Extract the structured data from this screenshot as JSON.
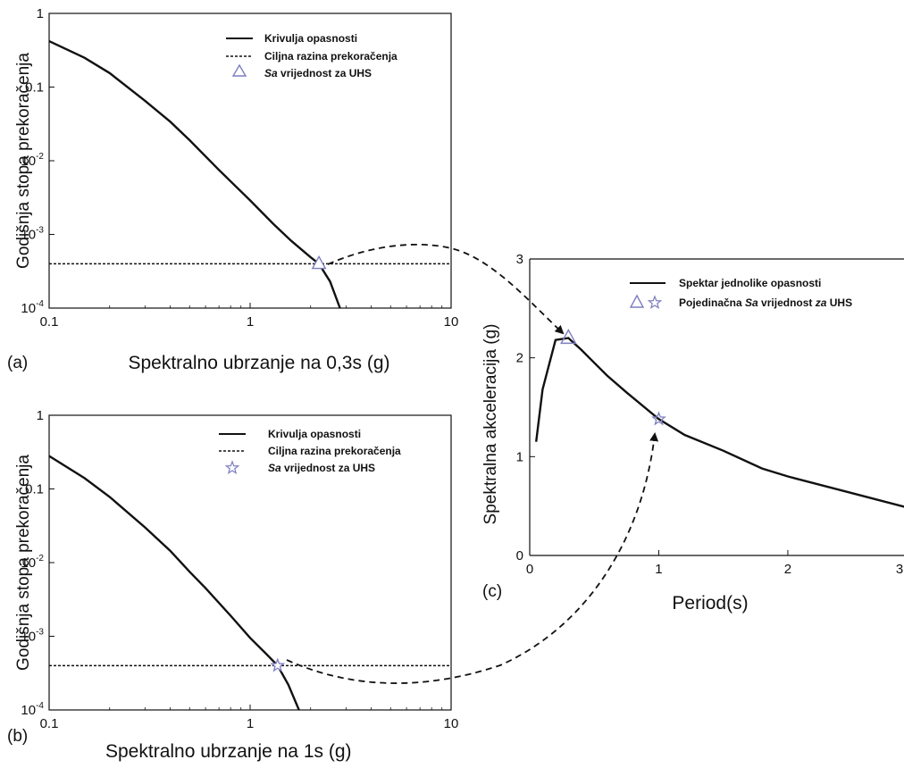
{
  "colors": {
    "curve": "#111111",
    "marker": "#7d7ec0",
    "axis": "#111111"
  },
  "chart_data": [
    {
      "panel": "(a)",
      "type": "line",
      "xscale": "log",
      "yscale": "log",
      "xlim": [
        0.1,
        10
      ],
      "ylim": [
        0.0001,
        1
      ],
      "xlabel": "Spektralno ubrzanje na 0,3s (g)",
      "ylabel": "Godišnja stopa prekoračenja",
      "xticks": [
        {
          "v": 0.1,
          "label": "0.1"
        },
        {
          "v": 1,
          "label": "1"
        },
        {
          "v": 10,
          "label": "10"
        }
      ],
      "yticks": [
        {
          "v": 1,
          "label": "1"
        },
        {
          "v": 0.1,
          "label": "0.1"
        },
        {
          "v": 0.01,
          "base": "10",
          "exp": "-2"
        },
        {
          "v": 0.001,
          "base": "10",
          "exp": "-3"
        },
        {
          "v": 0.0001,
          "base": "10",
          "exp": "-4"
        }
      ],
      "legend": [
        "Krivulja opasnosti",
        "Ciljna razina prekoračenja",
        {
          "italic": "Sa",
          "rest": " vrijednost za UHS"
        }
      ],
      "hazard_curve": {
        "x": [
          0.1,
          0.15,
          0.2,
          0.3,
          0.4,
          0.5,
          0.7,
          1.0,
          1.3,
          1.6,
          2.0,
          2.2,
          2.5,
          2.8
        ],
        "y": [
          0.42,
          0.25,
          0.155,
          0.065,
          0.034,
          0.019,
          0.0075,
          0.0029,
          0.0014,
          0.00082,
          0.00049,
          0.0004,
          0.00023,
          0.0001
        ]
      },
      "target_rate": 0.0004,
      "uhs_point": {
        "x": 2.2,
        "y": 0.0004,
        "marker": "triangle"
      }
    },
    {
      "panel": "(b)",
      "type": "line",
      "xscale": "log",
      "yscale": "log",
      "xlim": [
        0.1,
        10
      ],
      "ylim": [
        0.0001,
        1
      ],
      "xlabel": "Spektralno ubrzanje na 1s (g)",
      "ylabel": "Godišnja stopa prekoračenja",
      "xticks": [
        {
          "v": 0.1,
          "label": "0.1"
        },
        {
          "v": 1,
          "label": "1"
        },
        {
          "v": 10,
          "label": "10"
        }
      ],
      "yticks": [
        {
          "v": 1,
          "label": "1"
        },
        {
          "v": 0.1,
          "label": "0.1"
        },
        {
          "v": 0.01,
          "base": "10",
          "exp": "-2"
        },
        {
          "v": 0.001,
          "base": "10",
          "exp": "-3"
        },
        {
          "v": 0.0001,
          "base": "10",
          "exp": "-4"
        }
      ],
      "legend": [
        "Krivulja opasnosti",
        "Ciljna razina prekoračenja",
        {
          "italic": "Sa",
          "rest": " vrijednost za UHS"
        }
      ],
      "hazard_curve": {
        "x": [
          0.1,
          0.15,
          0.2,
          0.3,
          0.4,
          0.5,
          0.6,
          0.8,
          1.0,
          1.2,
          1.37,
          1.55,
          1.75
        ],
        "y": [
          0.28,
          0.14,
          0.078,
          0.03,
          0.0145,
          0.0075,
          0.0045,
          0.0019,
          0.00095,
          0.00058,
          0.0004,
          0.00022,
          0.0001
        ]
      },
      "target_rate": 0.0004,
      "uhs_point": {
        "x": 1.37,
        "y": 0.0004,
        "marker": "star"
      }
    },
    {
      "panel": "(c)",
      "type": "line",
      "xlim": [
        0,
        3
      ],
      "ylim": [
        0,
        3
      ],
      "xlabel": "Period(s)",
      "ylabel": "Spektralna akceleracija (g)",
      "xticks": [
        {
          "v": 0,
          "label": "0"
        },
        {
          "v": 1,
          "label": "1"
        },
        {
          "v": 2,
          "label": "2"
        },
        {
          "v": 3,
          "label": "3"
        }
      ],
      "yticks": [
        {
          "v": 0,
          "label": "0"
        },
        {
          "v": 1,
          "label": "1"
        },
        {
          "v": 2,
          "label": "2"
        },
        {
          "v": 3,
          "label": "3"
        }
      ],
      "legend": [
        "Spektar jednolike opasnosti",
        {
          "prefix": "Pojedinačna ",
          "italic": "Sa",
          "mid": " vrijednost ",
          "italic2": "za",
          "rest": " UHS"
        }
      ],
      "uhs_curve": {
        "x": [
          0.05,
          0.1,
          0.2,
          0.3,
          0.4,
          0.5,
          0.6,
          0.75,
          1.0,
          1.2,
          1.5,
          1.8,
          2.0,
          2.5,
          3.0
        ],
        "y": [
          1.15,
          1.68,
          2.18,
          2.2,
          2.08,
          1.95,
          1.82,
          1.65,
          1.38,
          1.22,
          1.06,
          0.88,
          0.8,
          0.63,
          0.46
        ]
      },
      "points": [
        {
          "x": 0.3,
          "y": 2.2,
          "marker": "triangle"
        },
        {
          "x": 1.0,
          "y": 1.38,
          "marker": "star"
        }
      ]
    }
  ]
}
